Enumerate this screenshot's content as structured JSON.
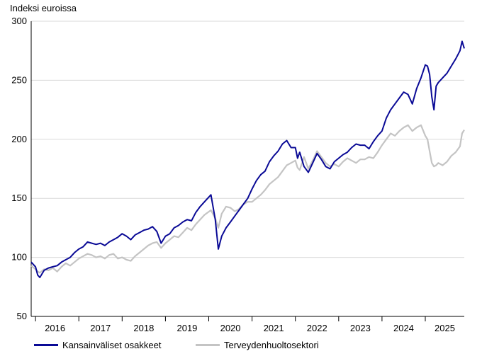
{
  "chart_data": {
    "type": "line",
    "ylabel": "Indeksi euroissa",
    "ylim": [
      50,
      300
    ],
    "yticks": [
      50,
      100,
      150,
      200,
      250,
      300
    ],
    "xlim": [
      2015.9,
      2025.9
    ],
    "xticks": [
      "2016",
      "2017",
      "2018",
      "2019",
      "2020",
      "2021",
      "2022",
      "2023",
      "2024",
      "2025"
    ],
    "grid": "horizontal",
    "legend_position": "bottom",
    "series": [
      {
        "name": "Kansainväliset osakkeet",
        "color": "#0a0a96",
        "x": [
          2015.9,
          2016.0,
          2016.05,
          2016.1,
          2016.2,
          2016.3,
          2016.4,
          2016.5,
          2016.6,
          2016.7,
          2016.8,
          2016.9,
          2017.0,
          2017.1,
          2017.2,
          2017.3,
          2017.4,
          2017.5,
          2017.6,
          2017.7,
          2017.8,
          2017.9,
          2018.0,
          2018.1,
          2018.2,
          2018.3,
          2018.4,
          2018.5,
          2018.6,
          2018.7,
          2018.8,
          2018.9,
          2019.0,
          2019.1,
          2019.2,
          2019.3,
          2019.4,
          2019.5,
          2019.6,
          2019.7,
          2019.8,
          2019.9,
          2020.05,
          2020.15,
          2020.22,
          2020.3,
          2020.4,
          2020.5,
          2020.6,
          2020.7,
          2020.8,
          2020.9,
          2021.0,
          2021.1,
          2021.2,
          2021.3,
          2021.4,
          2021.5,
          2021.6,
          2021.7,
          2021.8,
          2021.9,
          2022.0,
          2022.05,
          2022.1,
          2022.2,
          2022.3,
          2022.4,
          2022.5,
          2022.6,
          2022.7,
          2022.8,
          2022.9,
          2023.0,
          2023.1,
          2023.2,
          2023.3,
          2023.4,
          2023.5,
          2023.6,
          2023.7,
          2023.8,
          2023.9,
          2024.0,
          2024.1,
          2024.2,
          2024.3,
          2024.4,
          2024.5,
          2024.6,
          2024.7,
          2024.8,
          2024.9,
          2025.0,
          2025.05,
          2025.1,
          2025.15,
          2025.2,
          2025.25,
          2025.3,
          2025.4,
          2025.5,
          2025.6,
          2025.7,
          2025.8,
          2025.85,
          2025.9
        ],
        "values": [
          96,
          92,
          85,
          83,
          89,
          91,
          92,
          93,
          96,
          98,
          100,
          104,
          107,
          109,
          113,
          112,
          111,
          112,
          110,
          113,
          115,
          117,
          120,
          118,
          115,
          119,
          121,
          123,
          124,
          126,
          122,
          112,
          118,
          120,
          125,
          127,
          130,
          132,
          131,
          138,
          143,
          147,
          153,
          132,
          107,
          118,
          125,
          130,
          135,
          140,
          145,
          150,
          158,
          165,
          170,
          173,
          181,
          186,
          190,
          196,
          199,
          193,
          193,
          184,
          189,
          177,
          172,
          180,
          188,
          183,
          177,
          175,
          181,
          184,
          187,
          189,
          193,
          196,
          195,
          195,
          192,
          198,
          203,
          207,
          218,
          225,
          230,
          235,
          240,
          238,
          230,
          243,
          252,
          263,
          262,
          255,
          236,
          225,
          245,
          248,
          252,
          256,
          262,
          268,
          275,
          283,
          277
        ]
      },
      {
        "name": "Terveydenhuoltosektori",
        "color": "#c4c4c4",
        "x": [
          2015.9,
          2016.0,
          2016.05,
          2016.1,
          2016.2,
          2016.3,
          2016.4,
          2016.5,
          2016.6,
          2016.7,
          2016.8,
          2016.9,
          2017.0,
          2017.1,
          2017.2,
          2017.3,
          2017.4,
          2017.5,
          2017.6,
          2017.7,
          2017.8,
          2017.9,
          2018.0,
          2018.1,
          2018.2,
          2018.3,
          2018.4,
          2018.5,
          2018.6,
          2018.7,
          2018.8,
          2018.9,
          2019.0,
          2019.1,
          2019.2,
          2019.3,
          2019.4,
          2019.5,
          2019.6,
          2019.7,
          2019.8,
          2019.9,
          2020.05,
          2020.15,
          2020.22,
          2020.3,
          2020.4,
          2020.5,
          2020.6,
          2020.7,
          2020.8,
          2020.9,
          2021.0,
          2021.1,
          2021.2,
          2021.3,
          2021.4,
          2021.5,
          2021.6,
          2021.7,
          2021.8,
          2021.9,
          2022.0,
          2022.05,
          2022.1,
          2022.2,
          2022.3,
          2022.4,
          2022.5,
          2022.6,
          2022.7,
          2022.8,
          2022.9,
          2023.0,
          2023.1,
          2023.2,
          2023.3,
          2023.4,
          2023.5,
          2023.6,
          2023.7,
          2023.8,
          2023.9,
          2024.0,
          2024.1,
          2024.2,
          2024.3,
          2024.4,
          2024.5,
          2024.6,
          2024.7,
          2024.8,
          2024.9,
          2025.0,
          2025.05,
          2025.1,
          2025.15,
          2025.2,
          2025.25,
          2025.3,
          2025.4,
          2025.5,
          2025.6,
          2025.7,
          2025.8,
          2025.85,
          2025.9
        ],
        "values": [
          93,
          90,
          88,
          87,
          90,
          89,
          91,
          88,
          92,
          95,
          93,
          96,
          99,
          101,
          103,
          102,
          100,
          101,
          99,
          102,
          103,
          99,
          100,
          98,
          97,
          101,
          104,
          107,
          110,
          112,
          113,
          108,
          112,
          115,
          118,
          117,
          121,
          125,
          123,
          128,
          132,
          136,
          140,
          133,
          125,
          137,
          143,
          142,
          139,
          141,
          145,
          147,
          147,
          150,
          153,
          157,
          162,
          165,
          168,
          173,
          178,
          180,
          182,
          176,
          174,
          185,
          175,
          182,
          190,
          185,
          180,
          177,
          179,
          177,
          181,
          184,
          182,
          180,
          183,
          183,
          185,
          184,
          189,
          195,
          200,
          205,
          203,
          207,
          210,
          212,
          207,
          210,
          212,
          203,
          200,
          190,
          180,
          177,
          178,
          180,
          178,
          181,
          186,
          189,
          194,
          205,
          208
        ]
      }
    ]
  }
}
